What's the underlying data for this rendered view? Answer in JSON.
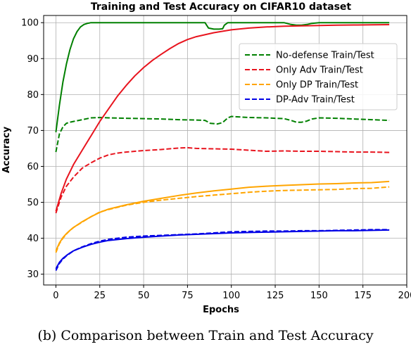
{
  "caption": "(b) Comparison between Train and Test Accuracy",
  "chart_data": {
    "type": "line",
    "title": "Training and Test Accuracy on CIFAR10 dataset",
    "xlabel": "Epochs",
    "ylabel": "Accuracy",
    "xlim": [
      -7,
      200
    ],
    "ylim": [
      27,
      102
    ],
    "xticks": [
      0,
      25,
      50,
      75,
      100,
      125,
      150,
      175,
      200
    ],
    "yticks": [
      30,
      40,
      50,
      60,
      70,
      80,
      90,
      100
    ],
    "grid": true,
    "legend_position": "right",
    "legend": [
      {
        "label": "No-defense Train/Test",
        "color": "#008000"
      },
      {
        "label": "Only Adv Train/Test",
        "color": "#e8141e"
      },
      {
        "label": "Only DP Train/Test",
        "color": "#ffa500"
      },
      {
        "label": "DP-Adv Train/Test",
        "color": "#0000e6"
      }
    ],
    "series": [
      {
        "color": "#008000",
        "style": "solid",
        "x": [
          0,
          2,
          4,
          6,
          8,
          10,
          12,
          14,
          16,
          18,
          20,
          25,
          30,
          40,
          50,
          60,
          70,
          80,
          85,
          87,
          90,
          93,
          95,
          96,
          98,
          100,
          110,
          120,
          130,
          134,
          137,
          140,
          143,
          146,
          150,
          160,
          170,
          180,
          190
        ],
        "y": [
          69.5,
          77,
          83.5,
          88.5,
          92.5,
          95.5,
          97.5,
          98.8,
          99.5,
          99.8,
          100,
          100,
          100,
          100,
          100,
          100,
          100,
          100,
          100,
          98.5,
          98.2,
          98.2,
          98.3,
          99.3,
          100,
          100,
          100,
          100,
          100,
          99.5,
          99.3,
          99.3,
          99.5,
          99.8,
          100,
          100,
          100,
          100,
          100
        ]
      },
      {
        "color": "#008000",
        "style": "dashed",
        "x": [
          0,
          2,
          4,
          6,
          8,
          10,
          15,
          20,
          25,
          30,
          40,
          50,
          60,
          70,
          80,
          85,
          88,
          92,
          95,
          98,
          100,
          110,
          120,
          130,
          134,
          137,
          140,
          143,
          146,
          150,
          160,
          170,
          180,
          190
        ],
        "y": [
          64,
          69,
          71,
          72,
          72.3,
          72.5,
          73,
          73.5,
          73.6,
          73.5,
          73.4,
          73.3,
          73.2,
          73,
          72.9,
          72.8,
          72,
          71.8,
          72.2,
          73.5,
          73.9,
          73.6,
          73.5,
          73.3,
          72.8,
          72.3,
          72.3,
          72.6,
          73.2,
          73.5,
          73.4,
          73.2,
          73,
          72.8
        ]
      },
      {
        "color": "#e8141e",
        "style": "solid",
        "x": [
          0,
          3,
          6,
          10,
          15,
          20,
          25,
          30,
          35,
          40,
          45,
          50,
          55,
          60,
          65,
          70,
          75,
          80,
          90,
          100,
          110,
          120,
          130,
          140,
          150,
          160,
          170,
          180,
          190
        ],
        "y": [
          47.5,
          52.5,
          56.5,
          60.5,
          64.5,
          68.5,
          72.5,
          76,
          79.5,
          82.5,
          85.2,
          87.5,
          89.5,
          91.2,
          92.8,
          94.2,
          95.3,
          96.1,
          97.2,
          98,
          98.5,
          98.8,
          99,
          99.1,
          99.2,
          99.3,
          99.35,
          99.4,
          99.45
        ]
      },
      {
        "color": "#e8141e",
        "style": "dashed",
        "x": [
          0,
          3,
          6,
          10,
          15,
          20,
          25,
          30,
          35,
          40,
          45,
          50,
          60,
          70,
          75,
          80,
          90,
          100,
          110,
          120,
          130,
          140,
          150,
          160,
          170,
          180,
          190
        ],
        "y": [
          47,
          51.5,
          54.5,
          57,
          59.5,
          61,
          62.3,
          63.2,
          63.7,
          64,
          64.2,
          64.4,
          64.7,
          65.1,
          65.2,
          65,
          64.9,
          64.8,
          64.5,
          64.2,
          64.3,
          64.2,
          64.2,
          64.1,
          64,
          64,
          63.9
        ]
      },
      {
        "color": "#ffa500",
        "style": "solid",
        "x": [
          0,
          2,
          4,
          6,
          8,
          10,
          15,
          20,
          25,
          30,
          40,
          50,
          60,
          70,
          80,
          90,
          100,
          110,
          120,
          130,
          140,
          150,
          160,
          170,
          180,
          190
        ],
        "y": [
          36.5,
          38.7,
          40.2,
          41.3,
          42.2,
          43,
          44.6,
          46,
          47.2,
          48.1,
          49.3,
          50.3,
          51.1,
          51.9,
          52.6,
          53.2,
          53.7,
          54.2,
          54.5,
          54.7,
          54.9,
          55.1,
          55.2,
          55.4,
          55.5,
          55.8
        ]
      },
      {
        "color": "#ffa500",
        "style": "dashed",
        "x": [
          0,
          2,
          4,
          6,
          8,
          10,
          15,
          20,
          25,
          30,
          40,
          50,
          60,
          70,
          80,
          90,
          100,
          110,
          120,
          130,
          140,
          150,
          160,
          170,
          180,
          190
        ],
        "y": [
          36,
          38.5,
          40,
          41.2,
          42.2,
          43,
          44.5,
          46,
          47.3,
          48,
          49.2,
          50,
          50.6,
          51.1,
          51.6,
          52,
          52.4,
          52.8,
          53.1,
          53.3,
          53.4,
          53.5,
          53.6,
          53.8,
          53.9,
          54.3
        ]
      },
      {
        "color": "#0000e6",
        "style": "solid",
        "x": [
          0,
          2,
          4,
          6,
          8,
          10,
          15,
          20,
          25,
          30,
          40,
          50,
          60,
          70,
          80,
          90,
          100,
          110,
          120,
          130,
          140,
          150,
          160,
          170,
          180,
          190
        ],
        "y": [
          31.5,
          33.3,
          34.4,
          35.2,
          35.9,
          36.5,
          37.5,
          38.3,
          38.9,
          39.4,
          39.9,
          40.3,
          40.6,
          40.9,
          41.1,
          41.3,
          41.5,
          41.6,
          41.7,
          41.8,
          41.9,
          42,
          42.1,
          42.1,
          42.2,
          42.3
        ]
      },
      {
        "color": "#0000e6",
        "style": "dashed",
        "x": [
          0,
          2,
          4,
          6,
          8,
          10,
          15,
          20,
          25,
          30,
          40,
          50,
          60,
          70,
          80,
          90,
          100,
          110,
          120,
          130,
          140,
          150,
          160,
          170,
          180,
          190
        ],
        "y": [
          31,
          33,
          34.2,
          35.1,
          35.8,
          36.5,
          37.6,
          38.5,
          39.2,
          39.7,
          40.3,
          40.6,
          40.8,
          41,
          41.2,
          41.5,
          41.8,
          41.9,
          42,
          42,
          42.1,
          42.1,
          42.2,
          42.3,
          42.4,
          42.4
        ]
      }
    ]
  }
}
